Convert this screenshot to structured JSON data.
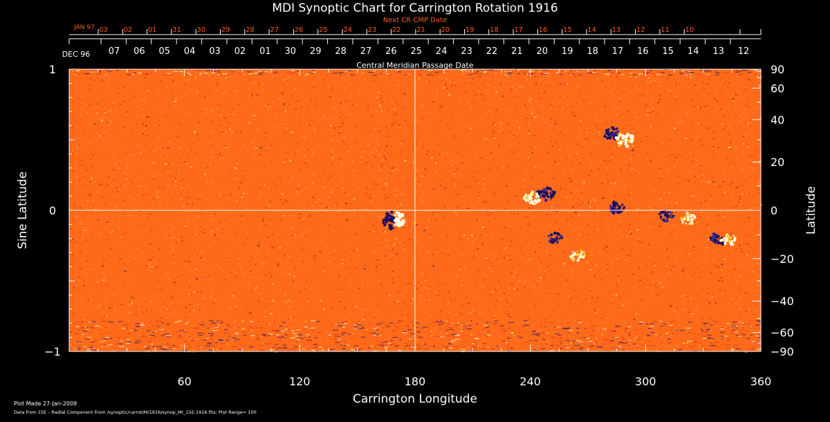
{
  "chart_data": {
    "type": "heatmap",
    "title": "MDI Synoptic Chart for Carrington Rotation 1916",
    "xlabel": "Carrington Longitude",
    "ylabel_left": "Sine Latitude",
    "ylabel_right": "Latitude",
    "top_axis_label": "Central Meridian Passage Date",
    "next_cr_label": "Next CR CMP Date",
    "xlim": [
      0,
      360
    ],
    "ylim": [
      -1,
      1
    ],
    "x_ticks": [
      60,
      120,
      180,
      240,
      300,
      360
    ],
    "y_ticks_left": [
      {
        "value": 1,
        "label": "1"
      },
      {
        "value": 0,
        "label": "0"
      },
      {
        "value": -1,
        "label": "−1"
      }
    ],
    "latitude_ticks": [
      90,
      60,
      40,
      20,
      0,
      -20,
      -40,
      -60,
      -90
    ],
    "latitude_tick_labels": [
      "90",
      "60",
      "40",
      "20",
      "0",
      "−20",
      "−40",
      "−60",
      "−90"
    ],
    "cmp_dates": {
      "start_label": "DEC 96",
      "labels": [
        "07",
        "06",
        "05",
        "04",
        "03",
        "02",
        "01",
        "30",
        "29",
        "28",
        "27",
        "26",
        "25",
        "24",
        "23",
        "22",
        "21",
        "20",
        "19",
        "18",
        "17",
        "16",
        "15",
        "14",
        "13",
        "12"
      ]
    },
    "next_cr_dates": {
      "start_label": "JAN 97",
      "labels": [
        "03",
        "02",
        "01",
        "31",
        "30",
        "29",
        "28",
        "27",
        "26",
        "25",
        "24",
        "23",
        "22",
        "21",
        "20",
        "19",
        "18",
        "17",
        "16",
        "15",
        "14",
        "13",
        "12",
        "11",
        "10"
      ]
    },
    "features": [
      {
        "lon": 169,
        "lat_sin": -0.07,
        "polarity": "mixed",
        "strength": 1.0
      },
      {
        "lon": 248,
        "lat_sin": 0.12,
        "polarity": "negative",
        "strength": 0.7
      },
      {
        "lon": 241,
        "lat_sin": 0.09,
        "polarity": "positive",
        "strength": 0.6
      },
      {
        "lon": 283,
        "lat_sin": 0.54,
        "polarity": "negative",
        "strength": 0.7
      },
      {
        "lon": 289,
        "lat_sin": 0.5,
        "polarity": "positive",
        "strength": 0.7
      },
      {
        "lon": 285,
        "lat_sin": 0.02,
        "polarity": "negative",
        "strength": 0.6
      },
      {
        "lon": 311,
        "lat_sin": -0.04,
        "polarity": "negative",
        "strength": 0.5
      },
      {
        "lon": 322,
        "lat_sin": -0.06,
        "polarity": "positive",
        "strength": 0.5
      },
      {
        "lon": 338,
        "lat_sin": -0.2,
        "polarity": "negative",
        "strength": 0.6
      },
      {
        "lon": 343,
        "lat_sin": -0.21,
        "polarity": "positive",
        "strength": 0.5
      },
      {
        "lon": 253,
        "lat_sin": -0.2,
        "polarity": "negative",
        "strength": 0.5
      },
      {
        "lon": 265,
        "lat_sin": -0.32,
        "polarity": "positive",
        "strength": 0.5
      }
    ],
    "plot_range": 100,
    "colors": {
      "background": "#000000",
      "field_base": "#ff6a1a",
      "positive": "#ffffe0",
      "negative": "#1a1060",
      "axis": "#ffffff",
      "top_dates": "#ff5a1a",
      "crosshair": "#ffffff"
    }
  },
  "footer": {
    "plot_made": "Plot Made 27-Jan-2009",
    "source": "Data from 15E – Radial Component From /synoptic/carrot/M/1916/synop_Mr_15E.1916.fits; Plot Range=  100"
  }
}
